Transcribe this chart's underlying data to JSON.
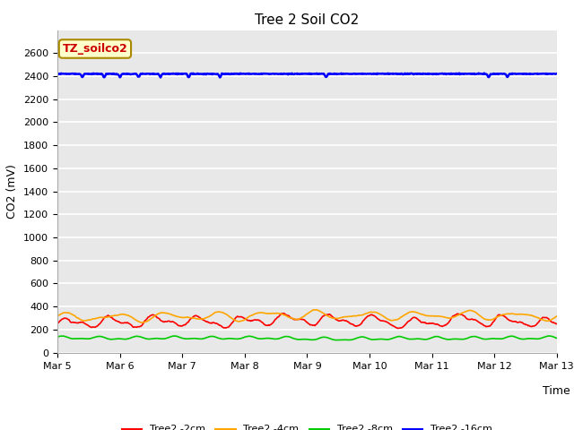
{
  "title": "Tree 2 Soil CO2",
  "xlabel": "Time",
  "ylabel": "CO2 (mV)",
  "ylim": [
    0,
    2800
  ],
  "yticks": [
    0,
    200,
    400,
    600,
    800,
    1000,
    1200,
    1400,
    1600,
    1800,
    2000,
    2200,
    2400,
    2600
  ],
  "x_tick_labels": [
    "Mar 5",
    "Mar 6",
    "Mar 7",
    "Mar 8",
    "Mar 9",
    "Mar 10",
    "Mar 11",
    "Mar 12",
    "Mar 13"
  ],
  "num_points": 800,
  "line_colors": [
    "#ff0000",
    "#ffa500",
    "#00cc00",
    "#0000ff"
  ],
  "line_labels": [
    "Tree2 -2cm",
    "Tree2 -4cm",
    "Tree2 -8cm",
    "Tree2 -16cm"
  ],
  "bg_color": "#e8e8e8",
  "grid_color": "#ffffff",
  "annotation_text": "TZ_soilco2",
  "annotation_bg": "#ffffcc",
  "annotation_border": "#aa8800",
  "title_fontsize": 11,
  "axis_label_fontsize": 9,
  "tick_fontsize": 8
}
